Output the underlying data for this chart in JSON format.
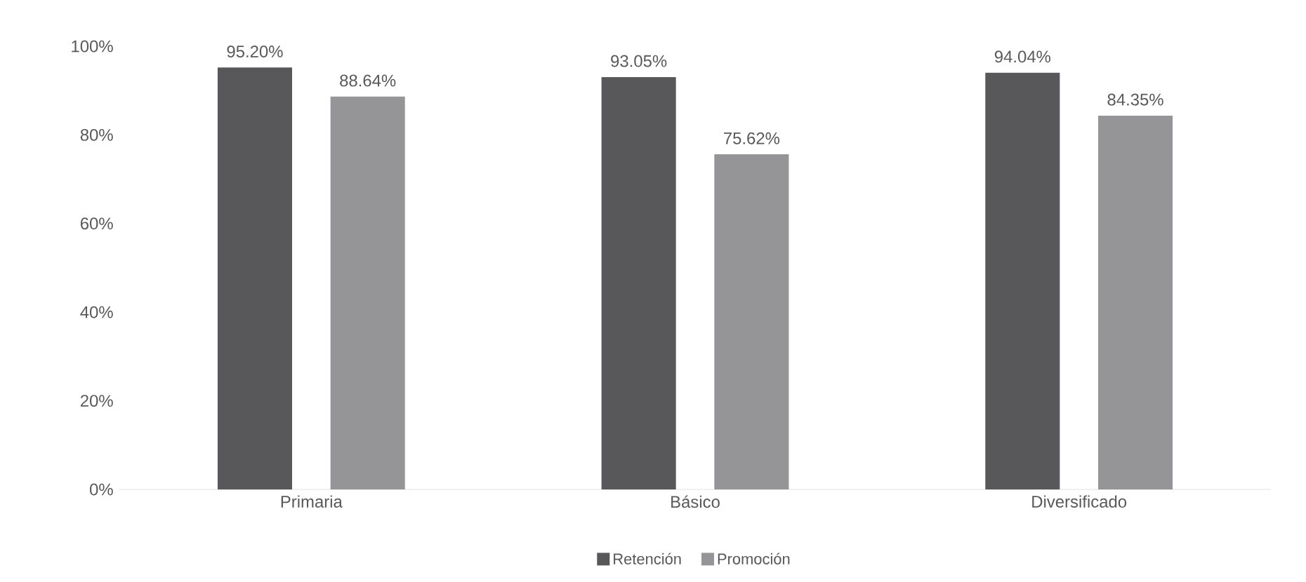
{
  "chart_data": {
    "type": "bar",
    "categories": [
      "Primaria",
      "Básico",
      "Diversificado"
    ],
    "series": [
      {
        "name": "Retención",
        "color": "#58585a",
        "values": [
          95.2,
          93.05,
          94.04
        ],
        "value_labels": [
          "95.20%",
          "93.05%",
          "94.04%"
        ]
      },
      {
        "name": "Promoción",
        "color": "#959597",
        "values": [
          88.64,
          75.62,
          84.35
        ],
        "value_labels": [
          "88.64%",
          "75.62%",
          "84.35%"
        ]
      }
    ],
    "ylim": [
      0,
      100
    ],
    "yticks": [
      {
        "value": 0,
        "label": "0%"
      },
      {
        "value": 20,
        "label": "20%"
      },
      {
        "value": 40,
        "label": "40%"
      },
      {
        "value": 60,
        "label": "60%"
      },
      {
        "value": 80,
        "label": "80%"
      },
      {
        "value": 100,
        "label": "100%"
      }
    ],
    "grid": false,
    "legend": "bottom"
  }
}
